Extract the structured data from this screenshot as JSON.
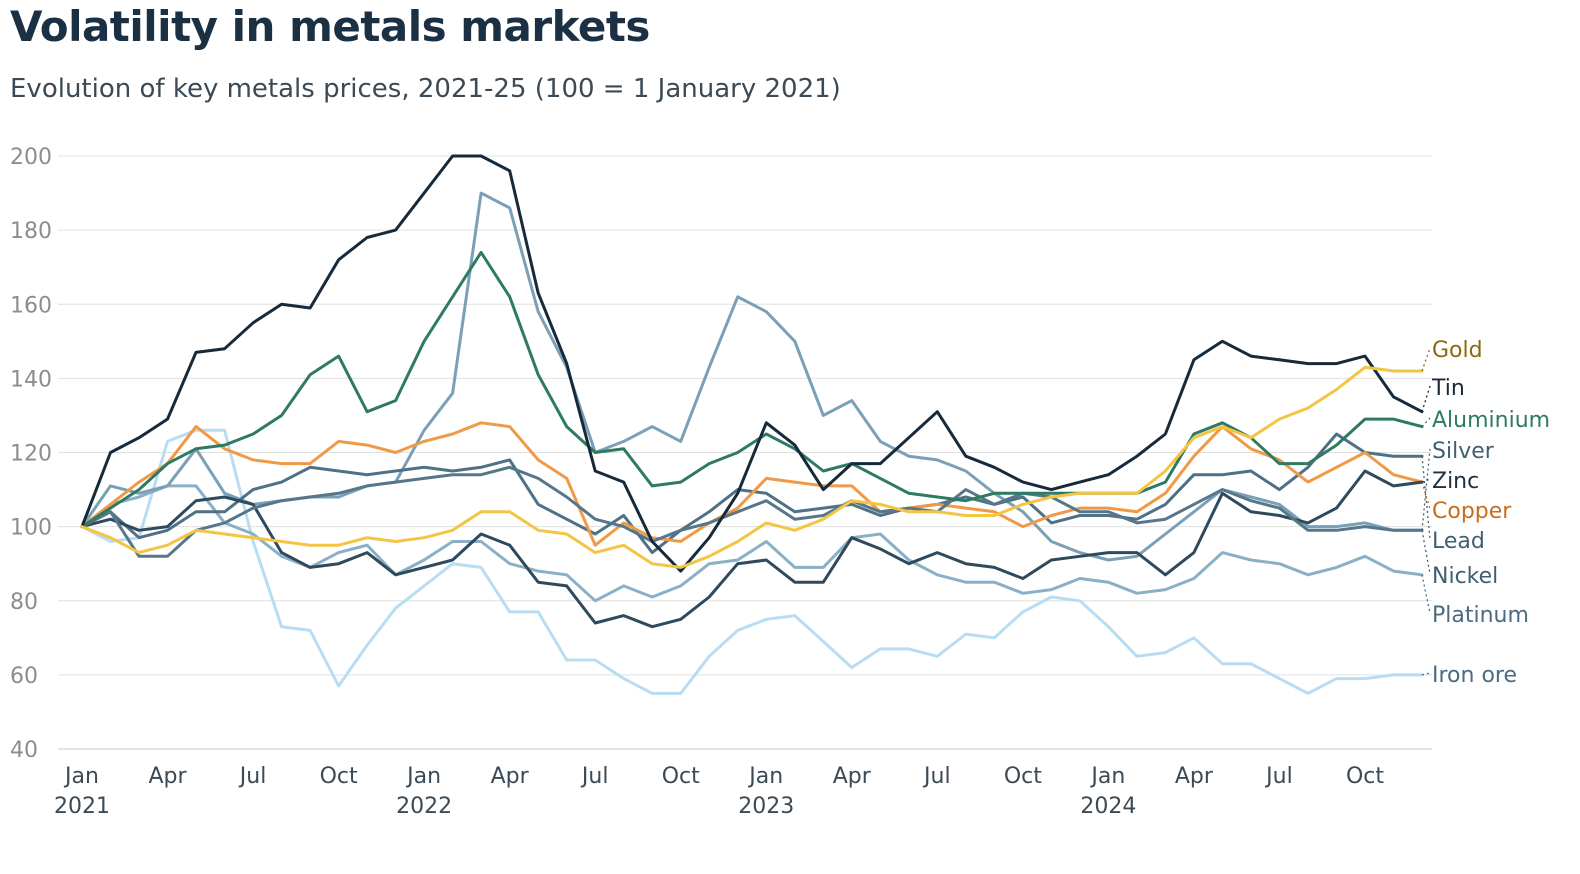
{
  "title": "Volatility in metals markets",
  "subtitle": "Evolution of key metals prices, 2021-25 (100 = 1 January 2021)",
  "chart_data": {
    "type": "line",
    "ylim": [
      40,
      200
    ],
    "y_ticks": [
      40,
      60,
      80,
      100,
      120,
      140,
      160,
      180,
      200
    ],
    "grid": true,
    "legend": "right-edge labels",
    "x": [
      "2021-01",
      "2021-02",
      "2021-03",
      "2021-04",
      "2021-05",
      "2021-06",
      "2021-07",
      "2021-08",
      "2021-09",
      "2021-10",
      "2021-11",
      "2021-12",
      "2022-01",
      "2022-02",
      "2022-03",
      "2022-04",
      "2022-05",
      "2022-06",
      "2022-07",
      "2022-08",
      "2022-09",
      "2022-10",
      "2022-11",
      "2022-12",
      "2023-01",
      "2023-02",
      "2023-03",
      "2023-04",
      "2023-05",
      "2023-06",
      "2023-07",
      "2023-08",
      "2023-09",
      "2023-10",
      "2023-11",
      "2023-12",
      "2024-01",
      "2024-02",
      "2024-03",
      "2024-04",
      "2024-05",
      "2024-06",
      "2024-07",
      "2024-08",
      "2024-09",
      "2024-10",
      "2024-11",
      "2024-12"
    ],
    "x_ticks": [
      {
        "label": "Jan",
        "year": "2021",
        "index": 0
      },
      {
        "label": "Apr",
        "year": "",
        "index": 3
      },
      {
        "label": "Jul",
        "year": "",
        "index": 6
      },
      {
        "label": "Oct",
        "year": "",
        "index": 9
      },
      {
        "label": "Jan",
        "year": "2022",
        "index": 12
      },
      {
        "label": "Apr",
        "year": "",
        "index": 15
      },
      {
        "label": "Jul",
        "year": "",
        "index": 18
      },
      {
        "label": "Oct",
        "year": "",
        "index": 21
      },
      {
        "label": "Jan",
        "year": "2023",
        "index": 24
      },
      {
        "label": "Apr",
        "year": "",
        "index": 27
      },
      {
        "label": "Jul",
        "year": "",
        "index": 30
      },
      {
        "label": "Oct",
        "year": "",
        "index": 33
      },
      {
        "label": "Jan",
        "year": "2024",
        "index": 36
      },
      {
        "label": "Apr",
        "year": "",
        "index": 39
      },
      {
        "label": "Jul",
        "year": "",
        "index": 42
      },
      {
        "label": "Oct",
        "year": "",
        "index": 45
      }
    ],
    "series": [
      {
        "name": "Iron ore",
        "color": "#b8ddf2",
        "label_color": "#4a6b80",
        "label_value": 60,
        "values": [
          100,
          96,
          97,
          123,
          126,
          126,
          96,
          73,
          72,
          57,
          68,
          78,
          84,
          90,
          89,
          77,
          77,
          64,
          64,
          59,
          55,
          55,
          65,
          72,
          75,
          76,
          69,
          62,
          67,
          67,
          65,
          71,
          70,
          77,
          81,
          80,
          73,
          65,
          66,
          70,
          63,
          63,
          59,
          55,
          59,
          59,
          60,
          60
        ]
      },
      {
        "name": "Platinum",
        "color": "#89b0c7",
        "label_color": "#4a6b80",
        "label_value": 80,
        "values": [
          100,
          106,
          108,
          111,
          111,
          101,
          98,
          92,
          89,
          93,
          95,
          87,
          91,
          96,
          96,
          90,
          88,
          87,
          80,
          84,
          81,
          84,
          90,
          91,
          96,
          89,
          89,
          97,
          98,
          91,
          87,
          85,
          85,
          82,
          83,
          86,
          85,
          82,
          83,
          86,
          93,
          91,
          90,
          87,
          89,
          92,
          88,
          87
        ]
      },
      {
        "name": "Nickel",
        "color": "#7aa0b8",
        "label_color": "#3f5f73",
        "label_value": 89,
        "values": [
          100,
          111,
          109,
          111,
          121,
          109,
          106,
          107,
          108,
          108,
          111,
          112,
          126,
          136,
          190,
          186,
          158,
          143,
          120,
          123,
          127,
          123,
          143,
          162,
          158,
          150,
          130,
          134,
          123,
          119,
          118,
          115,
          109,
          104,
          96,
          93,
          91,
          92,
          98,
          104,
          110,
          108,
          106,
          100,
          100,
          101,
          99,
          99
        ]
      },
      {
        "name": "Lead",
        "color": "#4f7186",
        "label_color": "#3f5f73",
        "label_value": 97,
        "values": [
          100,
          104,
          97,
          99,
          104,
          104,
          110,
          112,
          116,
          115,
          114,
          115,
          116,
          115,
          116,
          118,
          106,
          102,
          98,
          103,
          93,
          99,
          104,
          110,
          109,
          104,
          105,
          106,
          103,
          105,
          106,
          108,
          106,
          108,
          101,
          103,
          103,
          102,
          106,
          114,
          114,
          115,
          110,
          116,
          125,
          120,
          119,
          119
        ]
      },
      {
        "name": "Copper",
        "color": "#f09a48",
        "label_color": "#c86c1d",
        "label_value": 104,
        "values": [
          100,
          106,
          112,
          117,
          127,
          121,
          118,
          117,
          117,
          123,
          122,
          120,
          123,
          125,
          128,
          127,
          118,
          113,
          95,
          101,
          97,
          96,
          101,
          105,
          113,
          112,
          111,
          111,
          104,
          105,
          106,
          105,
          104,
          100,
          103,
          105,
          105,
          104,
          109,
          119,
          127,
          121,
          118,
          112,
          116,
          120,
          114,
          112
        ]
      },
      {
        "name": "Zinc",
        "color": "#2f4a5c",
        "label_color": "#22313d",
        "label_value": 110,
        "values": [
          100,
          102,
          99,
          100,
          107,
          108,
          106,
          93,
          89,
          90,
          93,
          87,
          89,
          91,
          98,
          95,
          85,
          84,
          74,
          76,
          73,
          75,
          81,
          90,
          91,
          85,
          85,
          97,
          94,
          90,
          93,
          90,
          89,
          86,
          91,
          92,
          93,
          93,
          87,
          93,
          109,
          104,
          103,
          101,
          105,
          115,
          111,
          112
        ]
      },
      {
        "name": "Silver",
        "color": "#56768a",
        "label_color": "#3f5f73",
        "label_value": 117,
        "values": [
          100,
          104,
          92,
          92,
          99,
          101,
          105,
          107,
          108,
          109,
          111,
          112,
          113,
          114,
          114,
          116,
          113,
          108,
          102,
          100,
          96,
          99,
          101,
          104,
          107,
          102,
          103,
          107,
          104,
          105,
          104,
          110,
          106,
          109,
          108,
          104,
          104,
          101,
          102,
          106,
          110,
          107,
          105,
          99,
          99,
          100,
          99,
          99
        ]
      },
      {
        "name": "Aluminium",
        "color": "#2f7a62",
        "label_color": "#2f7a62",
        "label_value": 124,
        "values": [
          100,
          105,
          110,
          117,
          121,
          122,
          125,
          130,
          141,
          146,
          131,
          134,
          150,
          162,
          174,
          162,
          141,
          127,
          120,
          121,
          111,
          112,
          117,
          120,
          125,
          121,
          115,
          117,
          113,
          109,
          108,
          107,
          109,
          109,
          109,
          109,
          109,
          109,
          112,
          125,
          128,
          124,
          117,
          117,
          122,
          129,
          129,
          127
        ]
      },
      {
        "name": "Tin",
        "color": "#162a3b",
        "label_color": "#162a3b",
        "label_value": 132,
        "values": [
          100,
          120,
          124,
          129,
          147,
          148,
          155,
          160,
          159,
          172,
          178,
          180,
          190,
          200,
          200,
          196,
          163,
          144,
          115,
          112,
          96,
          88,
          97,
          109,
          128,
          122,
          110,
          117,
          117,
          124,
          131,
          119,
          116,
          112,
          110,
          112,
          114,
          119,
          125,
          145,
          150,
          146,
          145,
          144,
          144,
          146,
          135,
          131
        ]
      },
      {
        "name": "Gold",
        "color": "#f4c443",
        "label_color": "#8a6a10",
        "label_value": 142,
        "values": [
          100,
          97,
          93,
          95,
          99,
          98,
          97,
          96,
          95,
          95,
          97,
          96,
          97,
          99,
          104,
          104,
          99,
          98,
          93,
          95,
          90,
          89,
          92,
          96,
          101,
          99,
          102,
          107,
          106,
          104,
          104,
          103,
          103,
          106,
          108,
          109,
          109,
          109,
          115,
          124,
          127,
          124,
          129,
          132,
          137,
          143,
          142,
          142
        ]
      }
    ]
  }
}
